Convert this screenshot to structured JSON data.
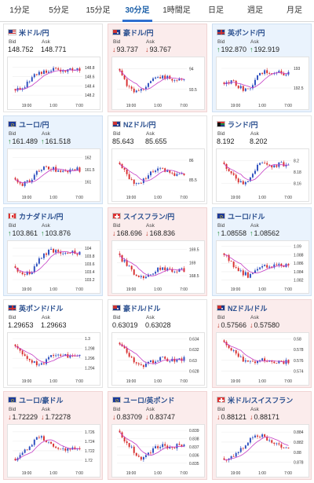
{
  "tabs": [
    {
      "label": "1分足",
      "active": false
    },
    {
      "label": "5分足",
      "active": false
    },
    {
      "label": "15分足",
      "active": false
    },
    {
      "label": "30分足",
      "active": true
    },
    {
      "label": "1時間足",
      "active": false
    },
    {
      "label": "日足",
      "active": false
    },
    {
      "label": "週足",
      "active": false
    },
    {
      "label": "月足",
      "active": false
    }
  ],
  "colors": {
    "up": "#1a8a2e",
    "down": "#c0392b",
    "candle_up": "#2d4fbf",
    "candle_down": "#d83030",
    "ma": "#c43bc4"
  },
  "bid_label": "Bid",
  "ask_label": "Ask",
  "x_ticks": [
    "19:00",
    "1:00",
    "7:00"
  ],
  "cards": [
    {
      "title": "米ドル/円",
      "flag": "flag-us",
      "dir": "neutral",
      "bid": "148.752",
      "ask": "148.771",
      "yticks": [
        "148.8",
        "148.6",
        "148.4",
        "148.2"
      ],
      "ylim": [
        148.1,
        148.95
      ],
      "close": [
        148.3,
        148.35,
        148.6,
        148.7,
        148.72,
        148.78,
        148.74,
        148.77,
        148.75
      ]
    },
    {
      "title": "豪ドル/円",
      "flag": "flag-au",
      "dir": "down",
      "bid": "93.737",
      "ask": "93.767",
      "yticks": [
        "94",
        "93.5"
      ],
      "ylim": [
        93.25,
        94.2
      ],
      "close": [
        93.9,
        93.6,
        93.45,
        93.55,
        93.75,
        93.82,
        93.8,
        93.74,
        93.74
      ]
    },
    {
      "title": "英ポンド/円",
      "flag": "flag-gb",
      "dir": "up",
      "bid": "192.870",
      "ask": "192.919",
      "yticks": [
        "193",
        "192.5"
      ],
      "ylim": [
        192.2,
        193.2
      ],
      "close": [
        192.6,
        192.7,
        192.5,
        192.45,
        192.75,
        192.95,
        192.9,
        192.88,
        192.87
      ]
    },
    {
      "title": "ユーロ/円",
      "flag": "flag-eu",
      "dir": "up",
      "bid": "161.489",
      "ask": "161.518",
      "yticks": [
        "162",
        "161.5",
        "161"
      ],
      "ylim": [
        160.6,
        162.2
      ],
      "close": [
        161.0,
        160.9,
        161.1,
        161.5,
        161.6,
        161.5,
        161.45,
        161.5,
        161.49
      ]
    },
    {
      "title": "NZドル/円",
      "flag": "flag-nz",
      "dir": "neutral",
      "bid": "85.643",
      "ask": "85.655",
      "yticks": [
        "86",
        "85.5"
      ],
      "ylim": [
        85.2,
        86.2
      ],
      "close": [
        85.9,
        85.6,
        85.4,
        85.5,
        85.7,
        85.8,
        85.7,
        85.62,
        85.64
      ]
    },
    {
      "title": "ランド/円",
      "flag": "flag-za",
      "dir": "neutral",
      "bid": "8.192",
      "ask": "8.202",
      "yticks": [
        "8.2",
        "8.18",
        "8.16"
      ],
      "ylim": [
        8.145,
        8.215
      ],
      "close": [
        8.19,
        8.18,
        8.16,
        8.165,
        8.19,
        8.2,
        8.19,
        8.195,
        8.192
      ]
    },
    {
      "title": "カナダドル/円",
      "flag": "flag-ca",
      "dir": "up",
      "bid": "103.861",
      "ask": "103.876",
      "yticks": [
        "104",
        "103.8",
        "103.6",
        "103.4",
        "103.2"
      ],
      "ylim": [
        103.1,
        104.1
      ],
      "close": [
        103.5,
        103.3,
        103.4,
        103.7,
        103.9,
        103.95,
        103.85,
        103.88,
        103.86
      ]
    },
    {
      "title": "スイスフラン/円",
      "flag": "flag-ch",
      "dir": "down",
      "bid": "168.696",
      "ask": "168.836",
      "yticks": [
        "169.5",
        "169",
        "168.5"
      ],
      "ylim": [
        168.2,
        169.7
      ],
      "close": [
        169.2,
        168.9,
        168.5,
        168.4,
        168.6,
        168.8,
        168.7,
        168.72,
        168.7
      ]
    },
    {
      "title": "ユーロ/ドル",
      "flag": "flag-eu",
      "dir": "up",
      "bid": "1.08558",
      "ask": "1.08562",
      "yticks": [
        "1.09",
        "1.088",
        "1.086",
        "1.084",
        "1.082"
      ],
      "ylim": [
        1.0812,
        1.0905
      ],
      "close": [
        1.088,
        1.086,
        1.084,
        1.083,
        1.0845,
        1.0855,
        1.0852,
        1.0856,
        1.0856
      ]
    },
    {
      "title": "英ポンド/ドル",
      "flag": "flag-gb",
      "dir": "neutral",
      "bid": "1.29653",
      "ask": "1.29663",
      "yticks": [
        "1.3",
        "1.298",
        "1.296",
        "1.294"
      ],
      "ylim": [
        1.2925,
        1.3005
      ],
      "close": [
        1.298,
        1.297,
        1.2955,
        1.2945,
        1.2958,
        1.297,
        1.2963,
        1.2966,
        1.2965
      ]
    },
    {
      "title": "豪ドル/ドル",
      "flag": "flag-au",
      "dir": "neutral",
      "bid": "0.63019",
      "ask": "0.63028",
      "yticks": [
        "0.634",
        "0.632",
        "0.63",
        "0.628"
      ],
      "ylim": [
        0.6272,
        0.6345
      ],
      "close": [
        0.633,
        0.631,
        0.6295,
        0.629,
        0.6298,
        0.6305,
        0.6302,
        0.6301,
        0.6302
      ]
    },
    {
      "title": "NZドル/ドル",
      "flag": "flag-nz",
      "dir": "down",
      "bid": "0.57566",
      "ask": "0.57580",
      "yticks": [
        "0.58",
        "0.578",
        "0.576",
        "0.574"
      ],
      "ylim": [
        0.5732,
        0.5805
      ],
      "close": [
        0.579,
        0.578,
        0.5765,
        0.5755,
        0.576,
        0.5762,
        0.5758,
        0.5757,
        0.5757
      ]
    },
    {
      "title": "ユーロ/豪ドル",
      "flag": "flag-eu",
      "dir": "down",
      "bid": "1.72229",
      "ask": "1.72278",
      "yticks": [
        "1.726",
        "1.724",
        "1.722",
        "1.72"
      ],
      "ylim": [
        1.7185,
        1.7268
      ],
      "close": [
        1.72,
        1.7215,
        1.7235,
        1.725,
        1.724,
        1.7225,
        1.7222,
        1.7224,
        1.7223
      ]
    },
    {
      "title": "ユーロ/英ポンド",
      "flag": "flag-eu",
      "dir": "down",
      "bid": "0.83709",
      "ask": "0.83747",
      "yticks": [
        "0.839",
        "0.838",
        "0.837",
        "0.836",
        "0.835"
      ],
      "ylim": [
        0.8345,
        0.8393
      ],
      "close": [
        0.8385,
        0.8375,
        0.836,
        0.8355,
        0.8365,
        0.8372,
        0.837,
        0.8371,
        0.8371
      ]
    },
    {
      "title": "米ドル/スイスフラン",
      "flag": "flag-ch",
      "dir": "down",
      "bid": "0.88121",
      "ask": "0.88171",
      "yticks": [
        "0.884",
        "0.882",
        "0.88",
        "0.878"
      ],
      "ylim": [
        0.877,
        0.8848
      ],
      "close": [
        0.8785,
        0.879,
        0.8805,
        0.882,
        0.8835,
        0.883,
        0.8818,
        0.8813,
        0.8812
      ]
    }
  ]
}
